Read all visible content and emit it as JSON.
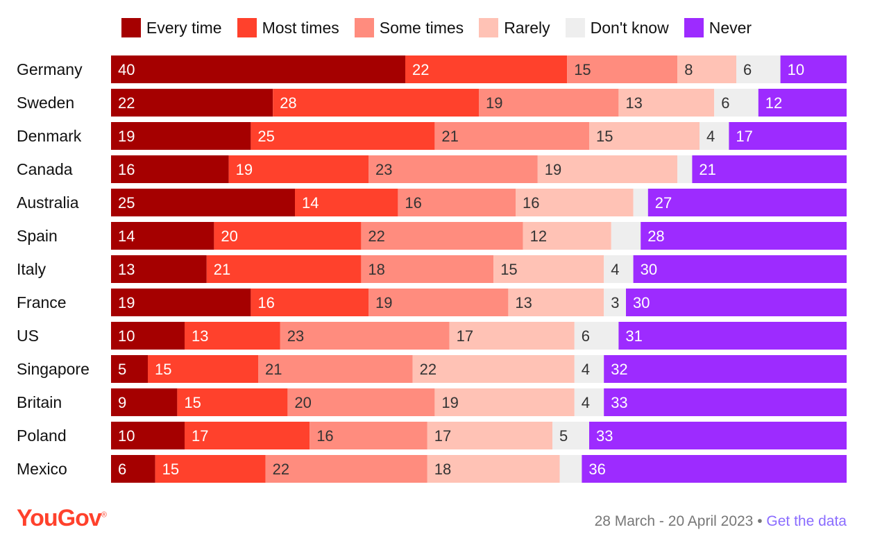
{
  "legend": [
    {
      "label": "Every time",
      "color": "#a50000"
    },
    {
      "label": "Most times",
      "color": "#ff412c"
    },
    {
      "label": "Some times",
      "color": "#ff8c7e"
    },
    {
      "label": "Rarely",
      "color": "#ffc2b5"
    },
    {
      "label": "Don't know",
      "color": "#eeeeee"
    },
    {
      "label": "Never",
      "color": "#9d2bff"
    }
  ],
  "chart_data": {
    "type": "bar",
    "orientation": "horizontal",
    "stacked": true,
    "categories": [
      "Germany",
      "Sweden",
      "Denmark",
      "Canada",
      "Australia",
      "Spain",
      "Italy",
      "France",
      "US",
      "Singapore",
      "Britain",
      "Poland",
      "Mexico"
    ],
    "series": [
      {
        "name": "Every time",
        "color": "#a50000",
        "label_color": "#ffffff",
        "values": [
          40,
          22,
          19,
          16,
          25,
          14,
          13,
          19,
          10,
          5,
          9,
          10,
          6
        ]
      },
      {
        "name": "Most times",
        "color": "#ff412c",
        "label_color": "#ffffff",
        "values": [
          22,
          28,
          25,
          19,
          14,
          20,
          21,
          16,
          13,
          15,
          15,
          17,
          15
        ]
      },
      {
        "name": "Some times",
        "color": "#ff8c7e",
        "label_color": "#333333",
        "values": [
          15,
          19,
          21,
          23,
          16,
          22,
          18,
          19,
          23,
          21,
          20,
          16,
          22
        ]
      },
      {
        "name": "Rarely",
        "color": "#ffc2b5",
        "label_color": "#333333",
        "values": [
          8,
          13,
          15,
          19,
          16,
          12,
          15,
          13,
          17,
          22,
          19,
          17,
          18
        ]
      },
      {
        "name": "Don't know",
        "color": "#eeeeee",
        "label_color": "#333333",
        "values": [
          6,
          6,
          4,
          null,
          null,
          null,
          4,
          3,
          6,
          4,
          4,
          5,
          null
        ]
      },
      {
        "name": "Never",
        "color": "#9d2bff",
        "label_color": "#ffffff",
        "values": [
          10,
          12,
          17,
          21,
          27,
          28,
          30,
          30,
          31,
          32,
          33,
          33,
          36
        ]
      }
    ]
  },
  "footer": {
    "brand": "YouGov",
    "brand_mark": "®",
    "date_range": "28 March - 20 April 2023",
    "separator": "•",
    "link_text": "Get the data"
  }
}
